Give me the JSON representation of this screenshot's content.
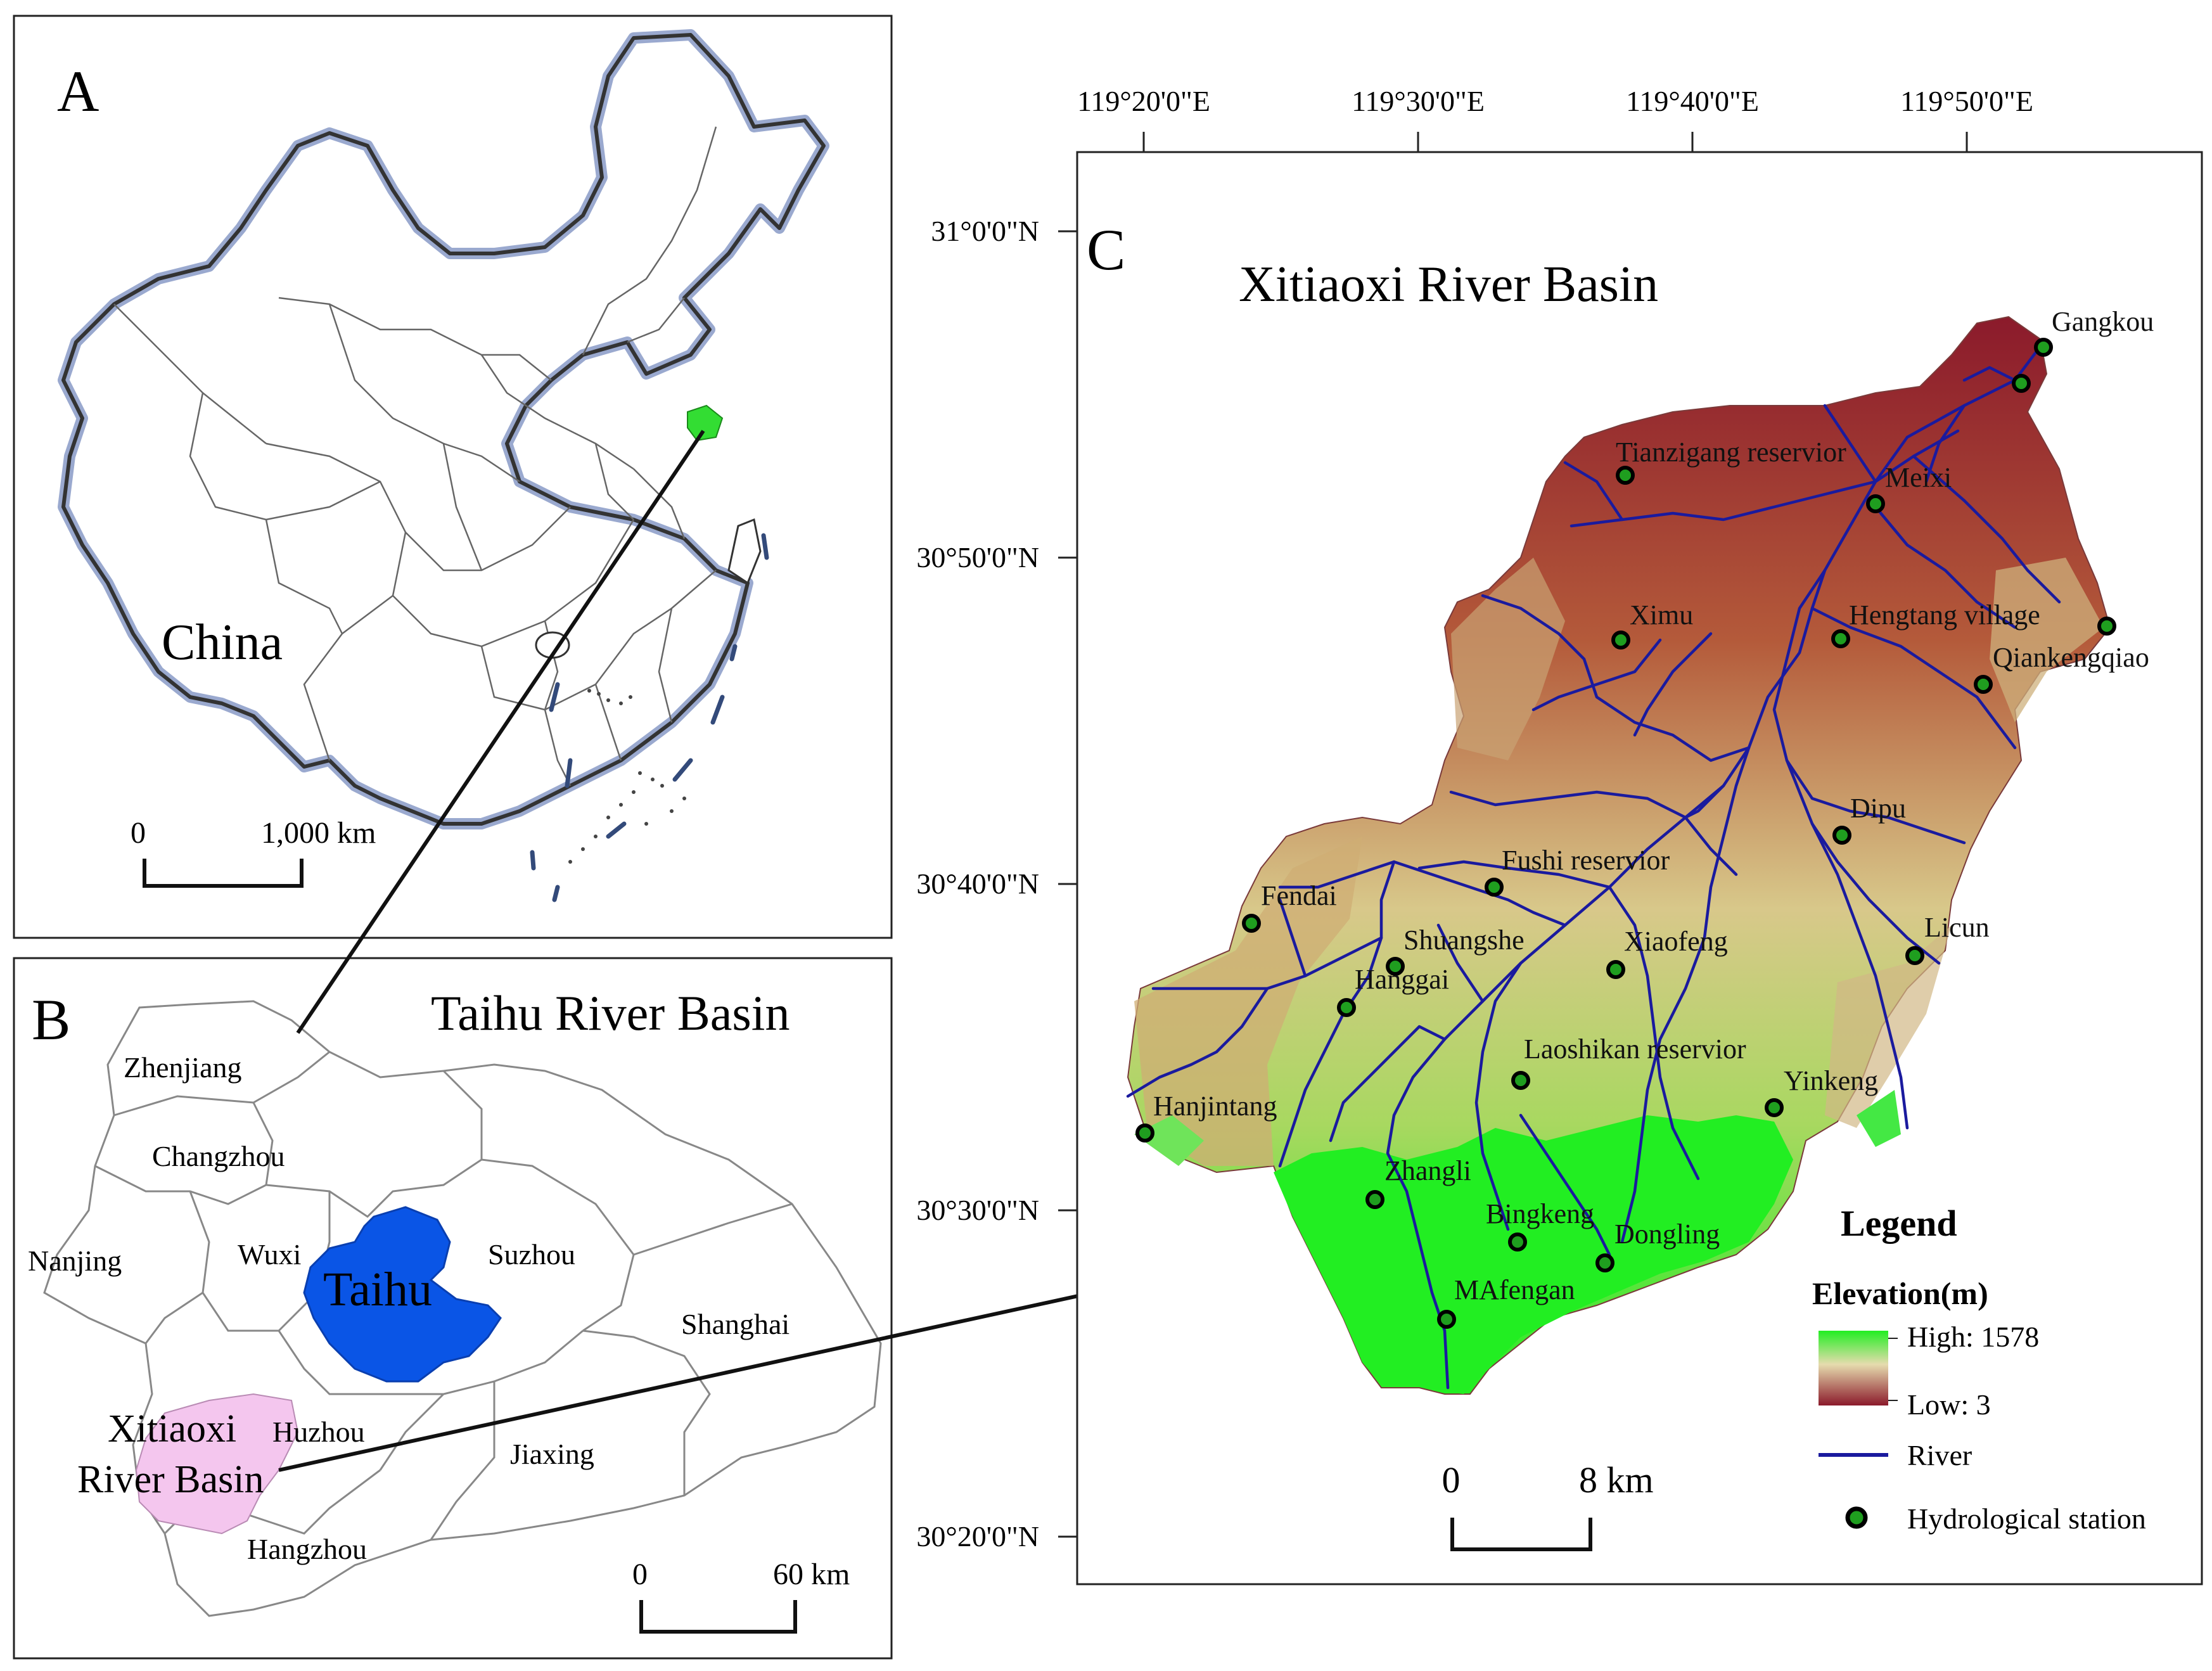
{
  "panel_a": {
    "letter": "A",
    "country_label": "China",
    "scale": {
      "zero": "0",
      "length": "1,000 km"
    }
  },
  "panel_b": {
    "letter": "B",
    "title": "Taihu River Basin",
    "cities": [
      "Zhenjiang",
      "Changzhou",
      "Nanjing",
      "Wuxi",
      "Suzhou",
      "Shanghai",
      "Huzhou",
      "Jiaxing",
      "Hangzhou"
    ],
    "lake_label": "Taihu",
    "basin_label_line1": "Xitiaoxi",
    "basin_label_line2": "River Basin",
    "scale": {
      "zero": "0",
      "length": "60 km"
    }
  },
  "panel_c": {
    "letter": "C",
    "title": "Xitiaoxi River Basin",
    "lon_ticks": [
      "119°20'0\"E",
      "119°30'0\"E",
      "119°40'0\"E",
      "119°50'0\"E"
    ],
    "lat_ticks": [
      "31°0'0\"N",
      "30°50'0\"N",
      "30°40'0\"N",
      "30°30'0\"N",
      "30°20'0\"N"
    ],
    "stations": [
      "Gangkou",
      "Tianzigang reservior",
      "Meixi",
      "Hengtang village",
      "Qiankengqiao",
      "Ximu",
      "Dipu",
      "Fushi reservior",
      "Fendai",
      "Shuangshe",
      "Hanggai",
      "Xiaofeng",
      "Licun",
      "Laoshikan reservior",
      "Yinkeng",
      "Hanjintang",
      "Zhangli",
      "Bingkeng",
      "Dongling",
      "MAfengan"
    ],
    "legend": {
      "title": "Legend",
      "elevation_title": "Elevation(m)",
      "high_label": "High: 1578",
      "low_label": "Low: 3",
      "river_label": "River",
      "station_label": "Hydrological station"
    },
    "scale": {
      "zero": "0",
      "length": "8 km"
    }
  },
  "colors": {
    "elev_low": "#8b1a2b",
    "elev_mid": "#d2c48a",
    "elev_high": "#22ee22",
    "river": "#1a1a9e",
    "station_fill": "#1f9e1f",
    "lake": "#0a55e6",
    "basin_highlight": "#f4c6ee",
    "china_marker": "#33dd33"
  },
  "icons": [
    "station-dot-icon",
    "river-line-icon"
  ]
}
